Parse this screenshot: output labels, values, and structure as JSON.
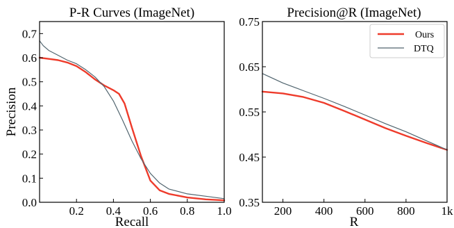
{
  "chart_data": [
    {
      "type": "line",
      "title": "P-R Curves (ImageNet)",
      "xlabel": "Recall",
      "ylabel": "Precision",
      "xlim": [
        0.0,
        1.0
      ],
      "ylim": [
        0.0,
        0.75
      ],
      "xticks": [
        0.2,
        0.4,
        0.6,
        0.8,
        1.0
      ],
      "xtick_labels": [
        "0.2",
        "0.4",
        "0.6",
        "0.8",
        "1.0"
      ],
      "yticks": [
        0.0,
        0.1,
        0.2,
        0.3,
        0.4,
        0.5,
        0.6,
        0.7
      ],
      "ytick_labels": [
        "0.0",
        "0.1",
        "0.2",
        "0.3",
        "0.4",
        "0.5",
        "0.6",
        "0.7"
      ],
      "grid": false,
      "series": [
        {
          "name": "Ours",
          "color": "#ee3b2b",
          "x": [
            0.0,
            0.05,
            0.1,
            0.15,
            0.2,
            0.25,
            0.3,
            0.35,
            0.4,
            0.43,
            0.46,
            0.5,
            0.55,
            0.6,
            0.65,
            0.7,
            0.8,
            0.9,
            1.0
          ],
          "y": [
            0.6,
            0.595,
            0.59,
            0.58,
            0.565,
            0.54,
            0.51,
            0.485,
            0.465,
            0.45,
            0.41,
            0.31,
            0.19,
            0.09,
            0.05,
            0.035,
            0.02,
            0.012,
            0.008
          ]
        },
        {
          "name": "DTQ",
          "color": "#50646e",
          "x": [
            0.0,
            0.02,
            0.05,
            0.1,
            0.15,
            0.2,
            0.25,
            0.3,
            0.35,
            0.4,
            0.45,
            0.5,
            0.55,
            0.6,
            0.65,
            0.7,
            0.8,
            0.9,
            1.0
          ],
          "y": [
            0.67,
            0.65,
            0.63,
            0.61,
            0.59,
            0.575,
            0.55,
            0.52,
            0.48,
            0.42,
            0.34,
            0.255,
            0.18,
            0.12,
            0.08,
            0.055,
            0.035,
            0.025,
            0.015
          ]
        }
      ]
    },
    {
      "type": "line",
      "title": "Precision@R (ImageNet)",
      "xlabel": "R",
      "ylabel": "",
      "xlim": [
        100,
        1000
      ],
      "ylim": [
        0.35,
        0.75
      ],
      "xticks": [
        200,
        400,
        600,
        800,
        1000
      ],
      "xtick_labels": [
        "200",
        "400",
        "600",
        "800",
        "1k"
      ],
      "yticks": [
        0.35,
        0.45,
        0.55,
        0.65,
        0.75
      ],
      "ytick_labels": [
        "0.35",
        "0.45",
        "0.55",
        "0.65",
        "0.75"
      ],
      "grid": false,
      "legend": "top-right",
      "series": [
        {
          "name": "Ours",
          "color": "#ee3b2b",
          "x": [
            100,
            200,
            300,
            400,
            500,
            600,
            700,
            800,
            900,
            1000
          ],
          "y": [
            0.595,
            0.591,
            0.583,
            0.57,
            0.552,
            0.533,
            0.514,
            0.497,
            0.481,
            0.466
          ]
        },
        {
          "name": "DTQ",
          "color": "#50646e",
          "x": [
            100,
            200,
            300,
            400,
            500,
            600,
            700,
            800,
            900,
            1000
          ],
          "y": [
            0.635,
            0.614,
            0.597,
            0.58,
            0.562,
            0.543,
            0.524,
            0.506,
            0.486,
            0.466
          ]
        }
      ]
    }
  ]
}
